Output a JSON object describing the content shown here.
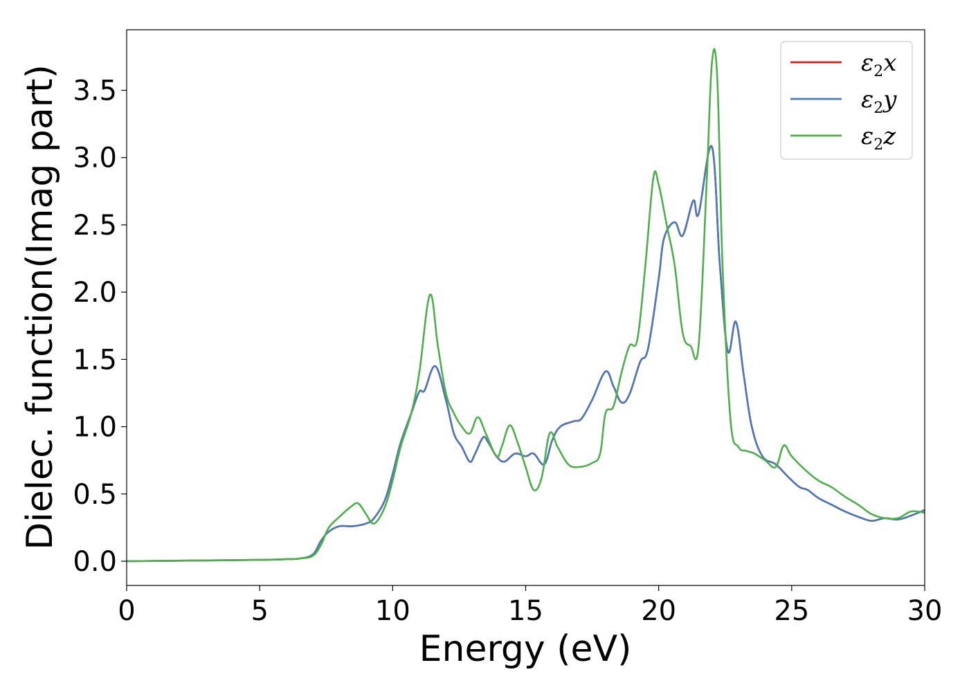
{
  "chart_data": {
    "type": "line",
    "xlabel": "Energy (eV)",
    "ylabel": "Dielec. function(Imag part)",
    "xlim": [
      0,
      30
    ],
    "ylim": [
      -0.18,
      3.95
    ],
    "xticks": [
      "0",
      "5",
      "10",
      "15",
      "20",
      "25",
      "30"
    ],
    "yticks": [
      "0.0",
      "0.5",
      "1.0",
      "1.5",
      "2.0",
      "2.5",
      "3.0",
      "3.5"
    ],
    "grid": false,
    "legend_position": "top-right",
    "series": [
      {
        "name": "ε2x",
        "legend": {
          "base": "ε",
          "sub": "2",
          "var": "x"
        },
        "color": "#e41a1c",
        "x": [
          0,
          5,
          6,
          6.5,
          7,
          7.3,
          7.6,
          8.0,
          8.5,
          9.0,
          9.3,
          9.7,
          10.0,
          10.3,
          10.7,
          11.0,
          11.2,
          11.6,
          12.0,
          12.3,
          12.6,
          12.9,
          13.1,
          13.4,
          13.6,
          13.9,
          14.2,
          14.6,
          15.0,
          15.3,
          15.7,
          16.0,
          16.3,
          16.8,
          17.1,
          17.5,
          18.0,
          18.3,
          18.6,
          18.9,
          19.3,
          19.6,
          20.0,
          20.2,
          20.6,
          20.9,
          21.3,
          21.5,
          22.0,
          22.3,
          22.6,
          22.9,
          23.2,
          23.5,
          23.9,
          24.4,
          24.9,
          25.3,
          25.6,
          26.0,
          26.5,
          27.0,
          27.5,
          28.0,
          28.5,
          29.0,
          29.5,
          30.0
        ],
        "y": [
          0.0,
          0.01,
          0.015,
          0.02,
          0.05,
          0.15,
          0.22,
          0.26,
          0.26,
          0.28,
          0.32,
          0.45,
          0.65,
          0.88,
          1.1,
          1.26,
          1.27,
          1.45,
          1.2,
          0.95,
          0.85,
          0.74,
          0.8,
          0.92,
          0.88,
          0.78,
          0.74,
          0.8,
          0.78,
          0.8,
          0.72,
          0.9,
          1.0,
          1.04,
          1.06,
          1.2,
          1.41,
          1.3,
          1.18,
          1.24,
          1.48,
          1.58,
          2.1,
          2.4,
          2.52,
          2.42,
          2.68,
          2.58,
          3.08,
          2.2,
          1.56,
          1.78,
          1.38,
          1.0,
          0.78,
          0.72,
          0.62,
          0.55,
          0.53,
          0.47,
          0.42,
          0.37,
          0.33,
          0.3,
          0.32,
          0.31,
          0.34,
          0.38
        ]
      },
      {
        "name": "ε2y",
        "legend": {
          "base": "ε",
          "sub": "2",
          "var": "y"
        },
        "color": "#4a7ab8",
        "x": [
          0,
          5,
          6,
          6.5,
          7,
          7.3,
          7.6,
          8.0,
          8.5,
          9.0,
          9.3,
          9.7,
          10.0,
          10.3,
          10.7,
          11.0,
          11.2,
          11.6,
          12.0,
          12.3,
          12.6,
          12.9,
          13.1,
          13.4,
          13.6,
          13.9,
          14.2,
          14.6,
          15.0,
          15.3,
          15.7,
          16.0,
          16.3,
          16.8,
          17.1,
          17.5,
          18.0,
          18.3,
          18.6,
          18.9,
          19.3,
          19.6,
          20.0,
          20.2,
          20.6,
          20.9,
          21.3,
          21.5,
          22.0,
          22.3,
          22.6,
          22.9,
          23.2,
          23.5,
          23.9,
          24.4,
          24.9,
          25.3,
          25.6,
          26.0,
          26.5,
          27.0,
          27.5,
          28.0,
          28.5,
          29.0,
          29.5,
          30.0
        ],
        "y": [
          0.0,
          0.01,
          0.015,
          0.02,
          0.05,
          0.15,
          0.22,
          0.26,
          0.26,
          0.28,
          0.32,
          0.45,
          0.65,
          0.88,
          1.1,
          1.26,
          1.27,
          1.45,
          1.2,
          0.95,
          0.85,
          0.74,
          0.8,
          0.92,
          0.88,
          0.78,
          0.74,
          0.8,
          0.78,
          0.8,
          0.72,
          0.9,
          1.0,
          1.04,
          1.06,
          1.2,
          1.41,
          1.3,
          1.18,
          1.24,
          1.48,
          1.58,
          2.1,
          2.4,
          2.52,
          2.42,
          2.68,
          2.58,
          3.08,
          2.2,
          1.56,
          1.78,
          1.38,
          1.0,
          0.78,
          0.72,
          0.62,
          0.55,
          0.53,
          0.47,
          0.42,
          0.37,
          0.33,
          0.3,
          0.32,
          0.31,
          0.34,
          0.38
        ]
      },
      {
        "name": "ε2z",
        "legend": {
          "base": "ε",
          "sub": "2",
          "var": "z"
        },
        "color": "#4daf4a",
        "x": [
          0,
          5,
          6,
          6.5,
          7,
          7.3,
          7.6,
          8.0,
          8.4,
          8.7,
          9.0,
          9.3,
          9.7,
          10.0,
          10.3,
          10.7,
          11.0,
          11.4,
          11.7,
          12.0,
          12.3,
          12.6,
          12.9,
          13.2,
          13.5,
          13.9,
          14.1,
          14.4,
          14.7,
          15.0,
          15.3,
          15.6,
          15.9,
          16.2,
          16.6,
          17.0,
          17.5,
          17.8,
          18.0,
          18.3,
          18.6,
          18.9,
          19.2,
          19.5,
          19.8,
          20.0,
          20.3,
          20.6,
          20.9,
          21.2,
          21.5,
          21.8,
          22.0,
          22.2,
          22.4,
          22.7,
          23.0,
          23.3,
          23.6,
          24.0,
          24.4,
          24.7,
          25.0,
          25.5,
          26.0,
          26.5,
          27.0,
          27.5,
          28.0,
          28.5,
          29.0,
          29.5,
          30.0
        ],
        "y": [
          0.0,
          0.01,
          0.015,
          0.02,
          0.04,
          0.12,
          0.25,
          0.33,
          0.4,
          0.43,
          0.35,
          0.28,
          0.4,
          0.6,
          0.85,
          1.1,
          1.4,
          1.98,
          1.6,
          1.25,
          1.1,
          1.0,
          0.95,
          1.07,
          0.95,
          0.78,
          0.85,
          1.01,
          0.88,
          0.7,
          0.53,
          0.62,
          0.95,
          0.85,
          0.72,
          0.7,
          0.73,
          0.8,
          1.1,
          1.15,
          1.4,
          1.6,
          1.65,
          2.2,
          2.85,
          2.8,
          2.5,
          2.2,
          1.7,
          1.6,
          1.6,
          2.8,
          3.7,
          3.6,
          2.2,
          1.05,
          0.85,
          0.82,
          0.8,
          0.75,
          0.7,
          0.86,
          0.78,
          0.68,
          0.6,
          0.55,
          0.48,
          0.42,
          0.35,
          0.32,
          0.32,
          0.37,
          0.36
        ]
      }
    ]
  }
}
